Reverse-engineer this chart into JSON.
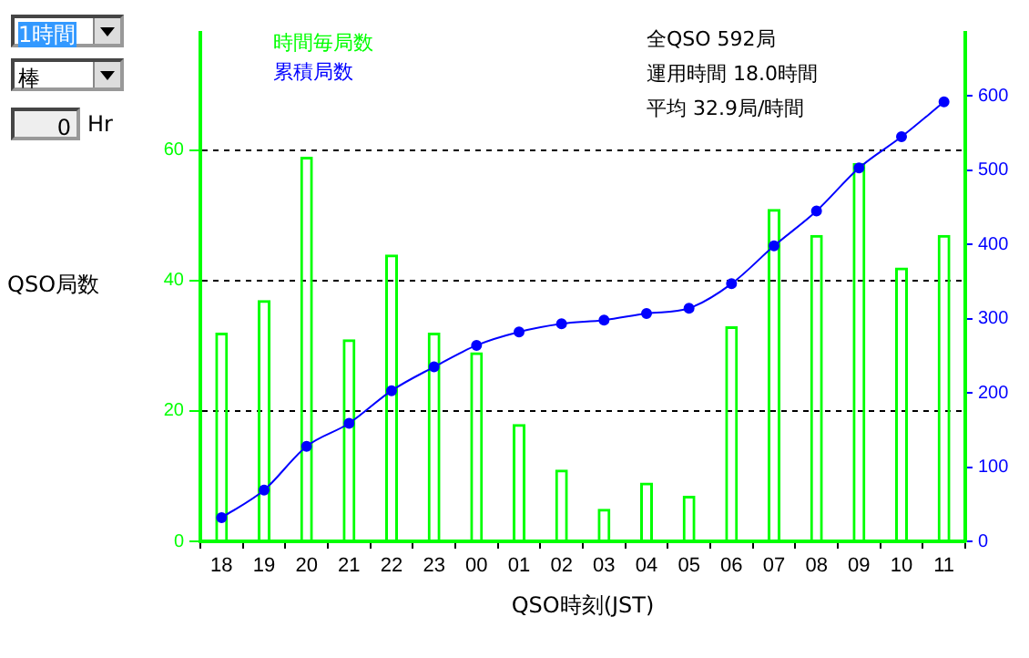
{
  "chart_data": {
    "type": "bar",
    "xlabel": "QSO時刻(JST)",
    "ylabel": "QSO局数",
    "categories": [
      "18",
      "19",
      "20",
      "21",
      "22",
      "23",
      "00",
      "01",
      "02",
      "03",
      "04",
      "05",
      "06",
      "07",
      "08",
      "09",
      "10",
      "11"
    ],
    "series": [
      {
        "name": "時間毎局数",
        "color": "#00ff00",
        "values": [
          32,
          37,
          59,
          31,
          44,
          32,
          29,
          18,
          11,
          5,
          9,
          7,
          33,
          51,
          47,
          58,
          42,
          47
        ]
      },
      {
        "name": "累積局数",
        "type": "line",
        "axis": "y2",
        "color": "#0000ff",
        "values": [
          32,
          69,
          128,
          159,
          203,
          235,
          264,
          282,
          293,
          298,
          307,
          314,
          347,
          398,
          445,
          503,
          545,
          592
        ]
      }
    ],
    "ylim": [
      0,
      78
    ],
    "yticks": [
      0,
      20,
      40,
      60
    ],
    "y2lim": [
      0,
      685
    ],
    "y2ticks": [
      0,
      100,
      200,
      300,
      400,
      500,
      600
    ],
    "grid": "y",
    "legend": "top left",
    "marker": "circle",
    "annotations": [
      "全QSO 592局",
      "運用時間 18.0時間",
      "平均 32.9局/時間",
      "1時間",
      "棒",
      "0",
      "Hr"
    ]
  }
}
